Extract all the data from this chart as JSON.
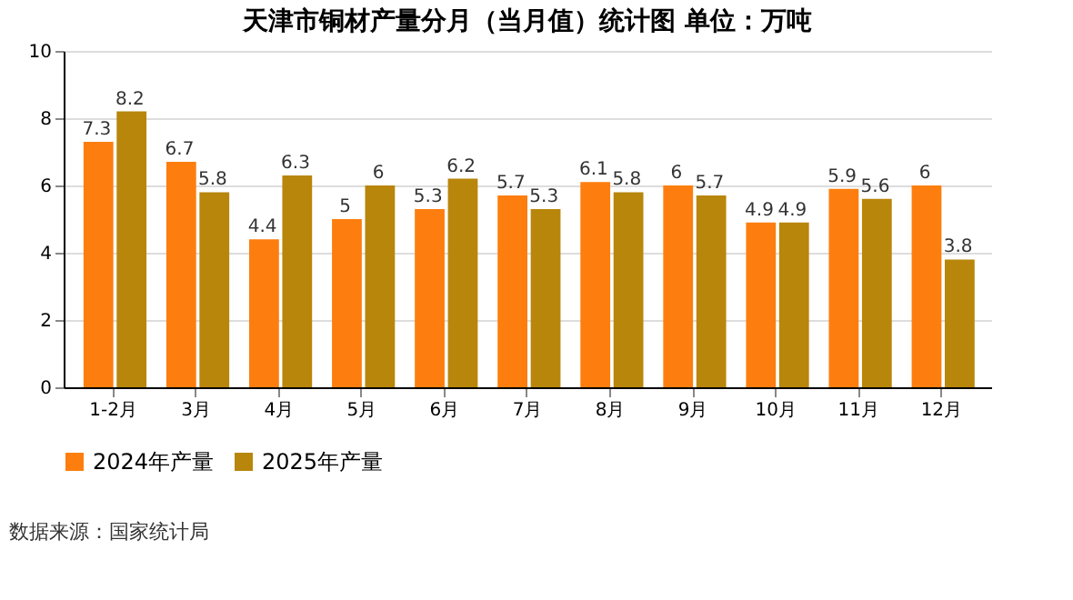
{
  "chart_data": {
    "type": "bar",
    "title": "天津市铜材产量分月（当月值）统计图 单位：万吨",
    "categories": [
      "1-2月",
      "3月",
      "4月",
      "5月",
      "6月",
      "7月",
      "8月",
      "9月",
      "10月",
      "11月",
      "12月"
    ],
    "series": [
      {
        "name": "2024年产量",
        "color": "#fd7e0e",
        "values": [
          7.3,
          6.7,
          4.4,
          5,
          5.3,
          5.7,
          6.1,
          6,
          4.9,
          5.9,
          6
        ]
      },
      {
        "name": "2025年产量",
        "color": "#b8860b",
        "values": [
          8.2,
          5.8,
          6.3,
          6,
          6.2,
          5.3,
          5.8,
          5.7,
          4.9,
          5.6,
          3.8
        ]
      }
    ],
    "ylim": [
      0,
      10
    ],
    "yticks": [
      0,
      2,
      4,
      6,
      8,
      10
    ],
    "grid": "y",
    "legend": "bottom",
    "data_labels": true,
    "annotations": [
      "数据来源：国家统计局"
    ]
  }
}
